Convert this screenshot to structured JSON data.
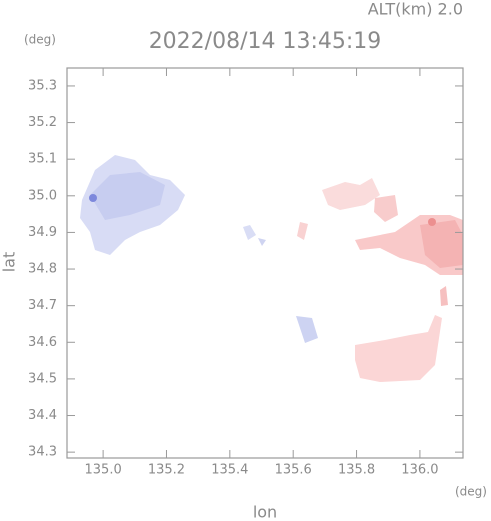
{
  "chart_data": {
    "type": "map",
    "title": "2022/08/14 13:45:19",
    "subtitle": "ALT(km) 2.0",
    "y_unit": "(deg)",
    "x_unit": "(deg)",
    "xlabel": "lon",
    "ylabel": "lat",
    "xlim": [
      134.886,
      136.136
    ],
    "ylim": [
      34.284,
      35.349
    ],
    "xticks": [
      {
        "value": 135.0,
        "label": "135.0"
      },
      135.2,
      135.4,
      135.6,
      135.8,
      {
        "value": 136.0,
        "label": "136.0"
      }
    ],
    "yticks": [
      34.3,
      34.4,
      34.5,
      34.6,
      34.7,
      34.8,
      34.9,
      {
        "value": 35.0,
        "label": "35.0"
      },
      35.1,
      35.2,
      35.3
    ]
  }
}
